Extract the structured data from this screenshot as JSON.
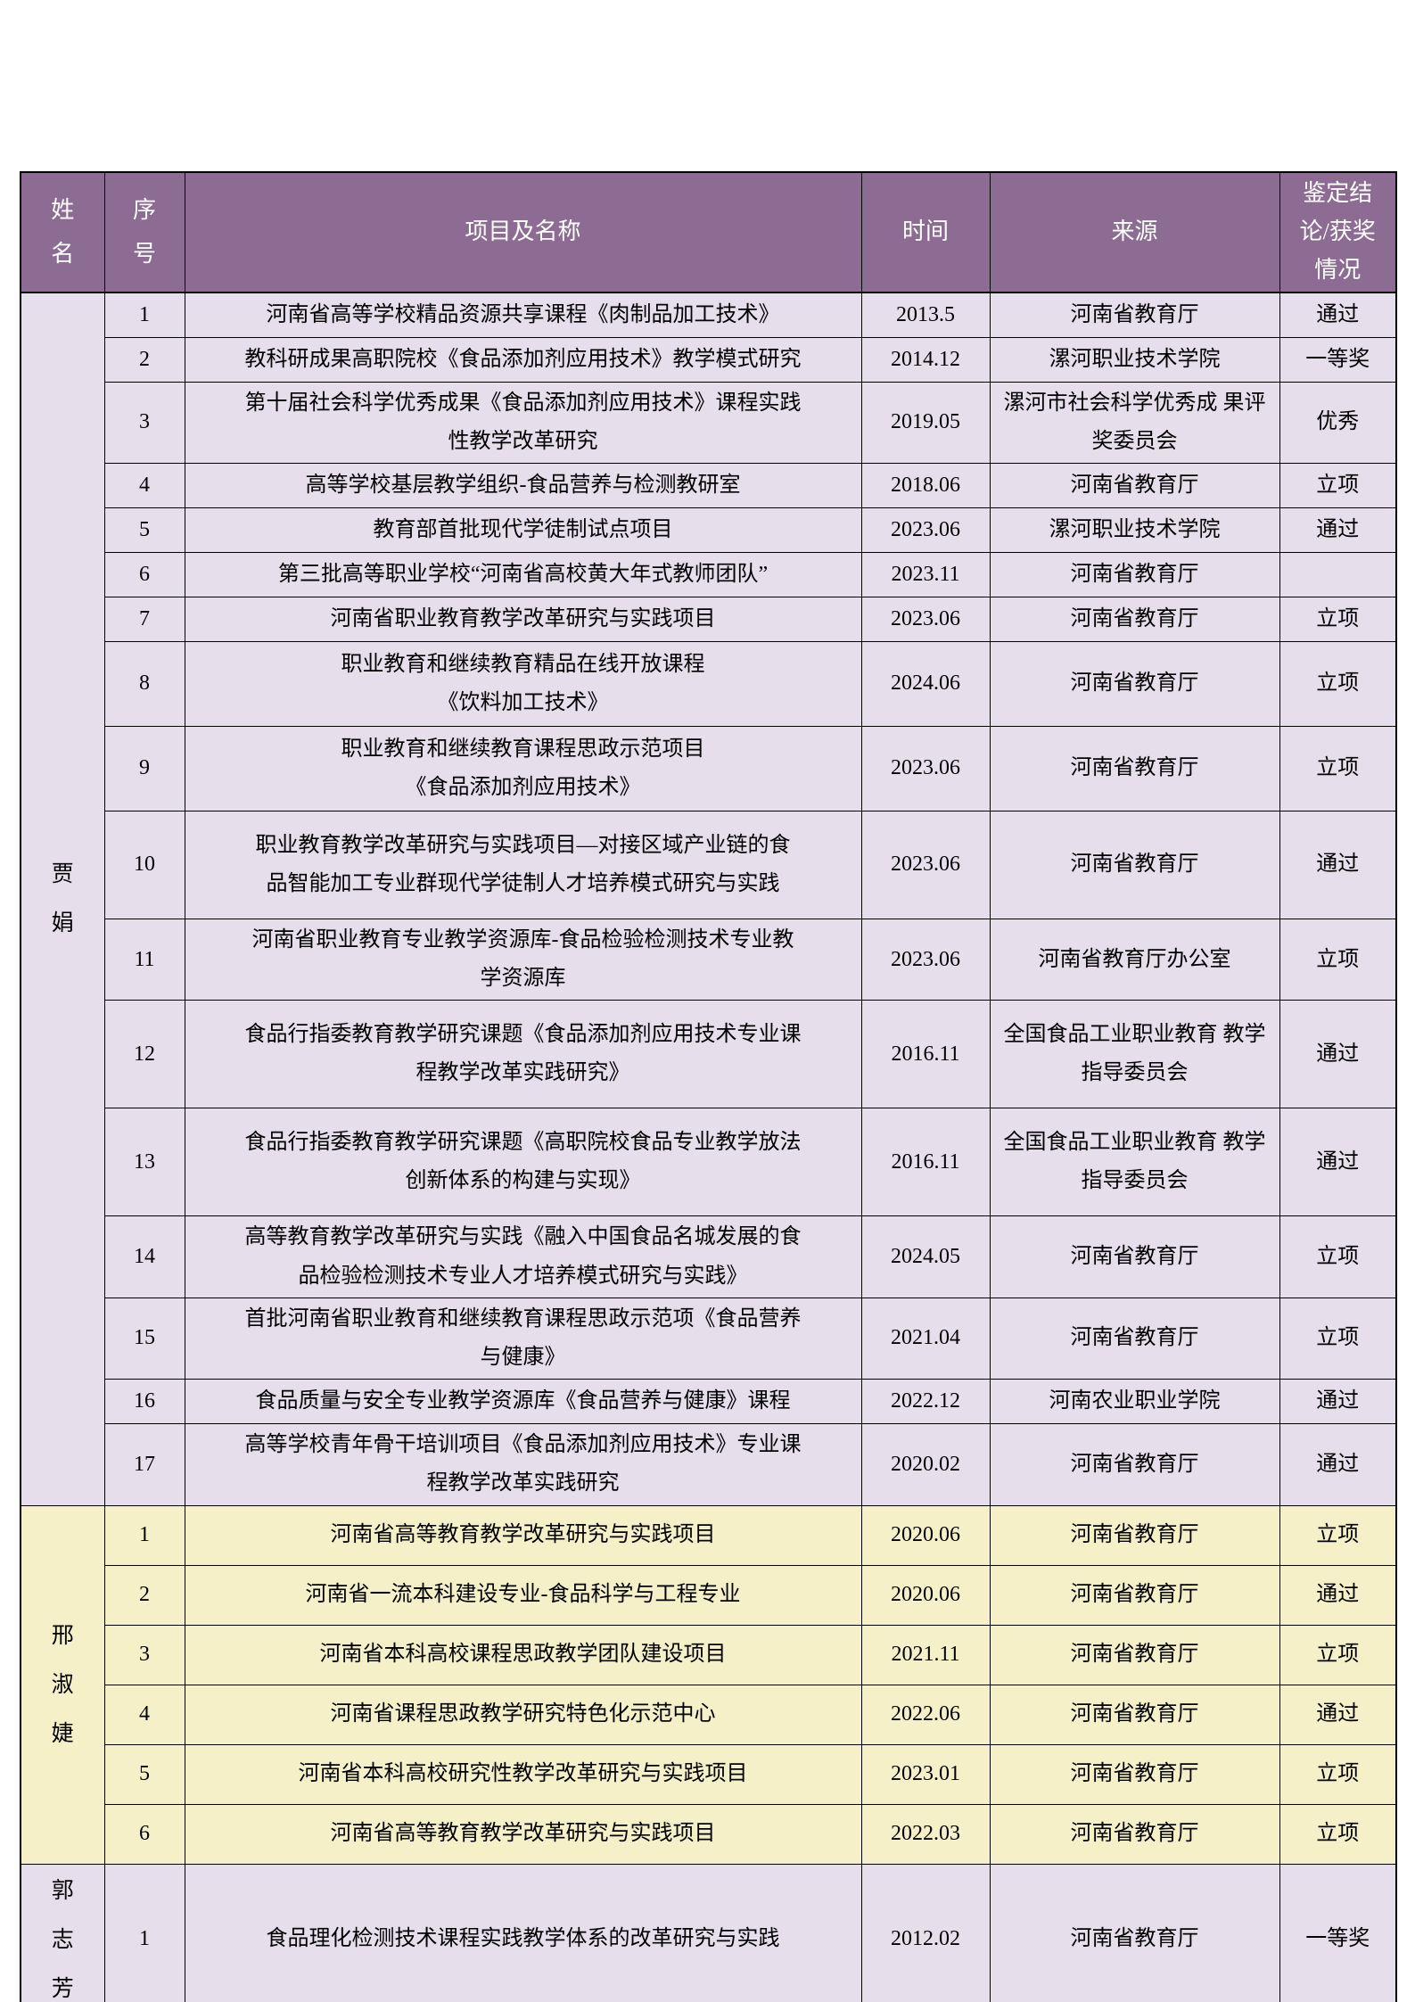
{
  "colors": {
    "header_bg": "#8c6c92",
    "header_text": "#ffffff",
    "row_purple": "#e6deeb",
    "row_yellow": "#f6f0c9",
    "border": "#000000"
  },
  "table": {
    "headers": {
      "name": "姓名",
      "no": "序号",
      "project": "项目及名称",
      "time": "时间",
      "source": "来源",
      "result": "鉴定结论/获奖情况"
    },
    "groups": [
      {
        "name": "贾娟",
        "theme": "purple",
        "rows": [
          {
            "no": "1",
            "project": "河南省高等学校精品资源共享课程《肉制品加工技术》",
            "time": "2013.5",
            "source": "河南省教育厅",
            "result": "通过"
          },
          {
            "no": "2",
            "project": "教科研成果高职院校《食品添加剂应用技术》教学模式研究",
            "time": "2014.12",
            "source": "漯河职业技术学院",
            "result": "一等奖"
          },
          {
            "no": "3",
            "project": "第十届社会科学优秀成果《食品添加剂应用技术》课程实践\n性教学改革研究",
            "time": "2019.05",
            "source": "漯河市社会科学优秀成\n果评奖委员会",
            "result": "优秀"
          },
          {
            "no": "4",
            "project": "高等学校基层教学组织-食品营养与检测教研室",
            "time": "2018.06",
            "source": "河南省教育厅",
            "result": "立项"
          },
          {
            "no": "5",
            "project": "教育部首批现代学徒制试点项目",
            "time": "2023.06",
            "source": "漯河职业技术学院",
            "result": "通过"
          },
          {
            "no": "6",
            "project": "第三批高等职业学校“河南省高校黄大年式教师团队”",
            "time": "2023.11",
            "source": "河南省教育厅",
            "result": ""
          },
          {
            "no": "7",
            "project": "河南省职业教育教学改革研究与实践项目",
            "time": "2023.06",
            "source": "河南省教育厅",
            "result": "立项"
          },
          {
            "no": "8",
            "project": "职业教育和继续教育精品在线开放课程\n《饮料加工技术》",
            "time": "2024.06",
            "source": "河南省教育厅",
            "result": "立项"
          },
          {
            "no": "9",
            "project": "职业教育和继续教育课程思政示范项目\n《食品添加剂应用技术》",
            "time": "2023.06",
            "source": "河南省教育厅",
            "result": "立项"
          },
          {
            "no": "10",
            "project": "职业教育教学改革研究与实践项目—对接区域产业链的食\n品智能加工专业群现代学徒制人才培养模式研究与实践",
            "time": "2023.06",
            "source": "河南省教育厅",
            "result": "通过"
          },
          {
            "no": "11",
            "project": "河南省职业教育专业教学资源库-食品检验检测技术专业教\n学资源库",
            "time": "2023.06",
            "source": "河南省教育厅办公室",
            "result": "立项"
          },
          {
            "no": "12",
            "project": "食品行指委教育教学研究课题《食品添加剂应用技术专业课\n程教学改革实践研究》",
            "time": "2016.11",
            "source": "全国食品工业职业教育\n教学指导委员会",
            "result": "通过"
          },
          {
            "no": "13",
            "project": "食品行指委教育教学研究课题《高职院校食品专业教学放法\n创新体系的构建与实现》",
            "time": "2016.11",
            "source": "全国食品工业职业教育\n教学指导委员会",
            "result": "通过"
          },
          {
            "no": "14",
            "project": "高等教育教学改革研究与实践《融入中国食品名城发展的食\n品检验检测技术专业人才培养模式研究与实践》",
            "time": "2024.05",
            "source": "河南省教育厅",
            "result": "立项"
          },
          {
            "no": "15",
            "project": "首批河南省职业教育和继续教育课程思政示范项《食品营养\n与健康》",
            "time": "2021.04",
            "source": "河南省教育厅",
            "result": "立项"
          },
          {
            "no": "16",
            "project": "食品质量与安全专业教学资源库《食品营养与健康》课程",
            "time": "2022.12",
            "source": "河南农业职业学院",
            "result": "通过"
          },
          {
            "no": "17",
            "project": "高等学校青年骨干培训项目《食品添加剂应用技术》专业课\n程教学改革实践研究",
            "time": "2020.02",
            "source": "河南省教育厅",
            "result": "通过"
          }
        ]
      },
      {
        "name": "邢淑婕",
        "theme": "yellow",
        "rows": [
          {
            "no": "1",
            "project": "河南省高等教育教学改革研究与实践项目",
            "time": "2020.06",
            "source": "河南省教育厅",
            "result": "立项"
          },
          {
            "no": "2",
            "project": "河南省一流本科建设专业-食品科学与工程专业",
            "time": "2020.06",
            "source": "河南省教育厅",
            "result": "通过"
          },
          {
            "no": "3",
            "project": "河南省本科高校课程思政教学团队建设项目",
            "time": "2021.11",
            "source": "河南省教育厅",
            "result": "立项"
          },
          {
            "no": "4",
            "project": "河南省课程思政教学研究特色化示范中心",
            "time": "2022.06",
            "source": "河南省教育厅",
            "result": "通过"
          },
          {
            "no": "5",
            "project": "河南省本科高校研究性教学改革研究与实践项目",
            "time": "2023.01",
            "source": "河南省教育厅",
            "result": "立项"
          },
          {
            "no": "6",
            "project": "河南省高等教育教学改革研究与实践项目",
            "time": "2022.03",
            "source": "河南省教育厅",
            "result": "立项"
          }
        ]
      },
      {
        "name": "郭志芳",
        "theme": "purple",
        "rows": [
          {
            "no": "1",
            "project": "食品理化检测技术课程实践教学体系的改革研究与实践",
            "time": "2012.02",
            "source": "河南省教育厅",
            "result": "一等奖"
          }
        ]
      }
    ]
  }
}
